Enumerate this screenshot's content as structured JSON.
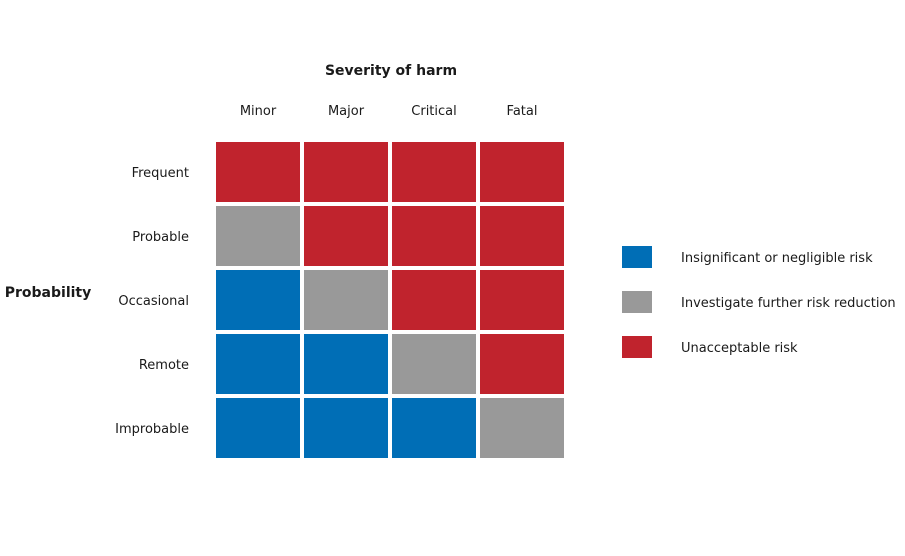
{
  "chart_data": {
    "type": "heatmap",
    "title": "Severity of harm",
    "xlabel": "Severity of harm",
    "ylabel": "Probability",
    "columns": [
      "Minor",
      "Major",
      "Critical",
      "Fatal"
    ],
    "rows": [
      "Frequent",
      "Probable",
      "Occasional",
      "Remote",
      "Improbable"
    ],
    "values": [
      [
        "unacceptable",
        "unacceptable",
        "unacceptable",
        "unacceptable"
      ],
      [
        "investigate",
        "unacceptable",
        "unacceptable",
        "unacceptable"
      ],
      [
        "insignificant",
        "investigate",
        "unacceptable",
        "unacceptable"
      ],
      [
        "insignificant",
        "insignificant",
        "investigate",
        "unacceptable"
      ],
      [
        "insignificant",
        "insignificant",
        "insignificant",
        "investigate"
      ]
    ],
    "categories": {
      "insignificant": {
        "label": "Insignificant or negligible risk",
        "color": "#006EB6"
      },
      "investigate": {
        "label": "Investigate further risk reduction",
        "color": "#999999"
      },
      "unacceptable": {
        "label": "Unacceptable risk",
        "color": "#C0232D"
      }
    },
    "legend_order": [
      "insignificant",
      "investigate",
      "unacceptable"
    ],
    "legend_position": "right"
  }
}
